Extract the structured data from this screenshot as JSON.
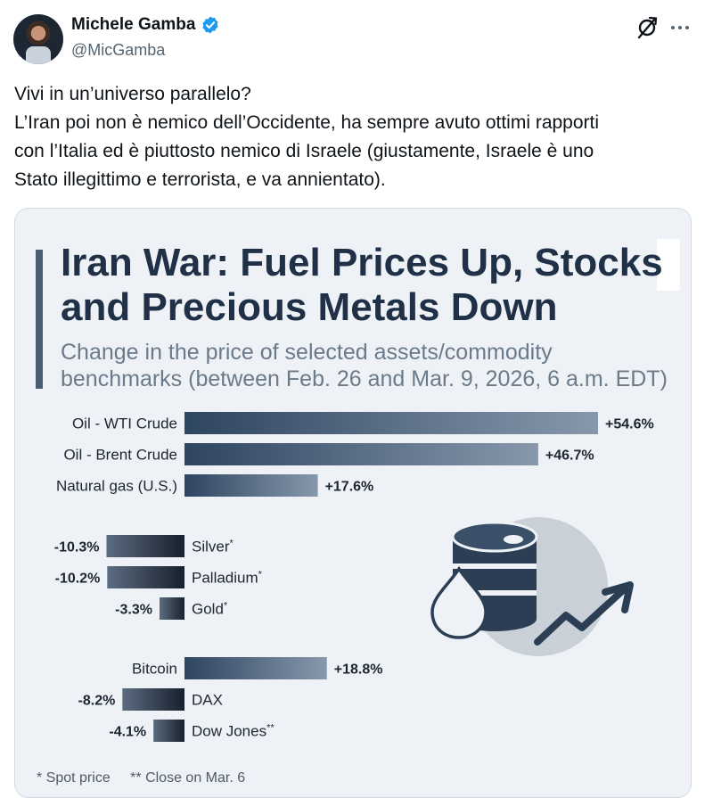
{
  "tweet": {
    "author_name": "Michele Gamba",
    "author_handle": "@MicGamba",
    "text_lines": [
      "Vivi in un’universo parallelo?",
      "L’Iran poi non è nemico dell’Occidente, ha sempre avuto ottimi rapporti",
      "con l’Italia ed è piuttosto nemico di Israele (giustamente, Israele è uno",
      "Stato illegittimo e terrorista, e va annientato)."
    ],
    "icons": {
      "verified": "verified-badge-icon",
      "grok": "grok-icon",
      "more": "more-icon"
    },
    "colors": {
      "verified": "#1d9bf0",
      "text": "#0f1419",
      "secondary": "#536471"
    }
  },
  "infographic": {
    "title": "Iran War: Fuel Prices Up, Stocks\nand Precious Metals Down",
    "subtitle": "Change in the price of selected assets/commodity\nbenchmarks (between Feb. 26 and Mar. 9, 2026, 6 a.m. EDT)",
    "footnotes": [
      "* Spot price",
      "** Close on Mar. 6"
    ],
    "illustration": "oil-barrel-drop-rising-arrow-icon"
  },
  "chart_data": {
    "type": "bar",
    "orientation": "horizontal",
    "unit": "%",
    "groups": [
      {
        "categories": [
          "Oil - WTI Crude",
          "Oil - Brent Crude",
          "Natural gas (U.S.)"
        ],
        "values": [
          54.6,
          46.7,
          17.6
        ],
        "labels": [
          "+54.6%",
          "+46.7%",
          "+17.6%"
        ]
      },
      {
        "categories": [
          "Silver",
          "Palladium",
          "Gold"
        ],
        "marks": [
          "*",
          "*",
          "*"
        ],
        "values": [
          -10.3,
          -10.2,
          -3.3
        ],
        "labels": [
          "-10.3%",
          "-10.2%",
          "-3.3%"
        ]
      },
      {
        "categories": [
          "Bitcoin",
          "DAX",
          "Dow Jones"
        ],
        "marks": [
          "",
          "",
          "**"
        ],
        "values": [
          18.8,
          -8.2,
          -4.1
        ],
        "labels": [
          "+18.8%",
          "-8.2%",
          "-4.1%"
        ]
      }
    ],
    "colors": {
      "positive_start": "#2e4560",
      "positive_end": "#8798ab",
      "negative_start": "#5c6c80",
      "negative_end": "#17202d"
    }
  }
}
